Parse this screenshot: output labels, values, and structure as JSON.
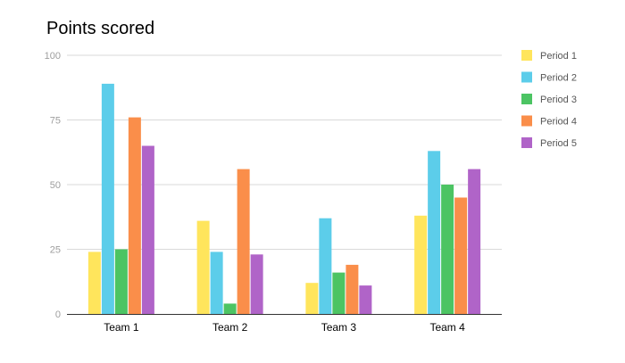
{
  "chart_data": {
    "type": "bar",
    "title": "Points scored",
    "xlabel": "",
    "ylabel": "",
    "categories": [
      "Team 1",
      "Team 2",
      "Team 3",
      "Team 4"
    ],
    "ylim": [
      0,
      100
    ],
    "yticks": [
      "0",
      "25",
      "50",
      "75",
      "100"
    ],
    "grid": true,
    "legend_position": "right",
    "series": [
      {
        "name": "Period 1",
        "color": "#FFE55C",
        "values": [
          24,
          36,
          12,
          38
        ]
      },
      {
        "name": "Period 2",
        "color": "#5CCDEA",
        "values": [
          89,
          24,
          37,
          63
        ]
      },
      {
        "name": "Period 3",
        "color": "#4CC463",
        "values": [
          25,
          4,
          16,
          50
        ]
      },
      {
        "name": "Period 4",
        "color": "#FA8E4A",
        "values": [
          76,
          56,
          19,
          45
        ]
      },
      {
        "name": "Period 5",
        "color": "#B064C8",
        "values": [
          65,
          23,
          11,
          56
        ]
      }
    ]
  }
}
